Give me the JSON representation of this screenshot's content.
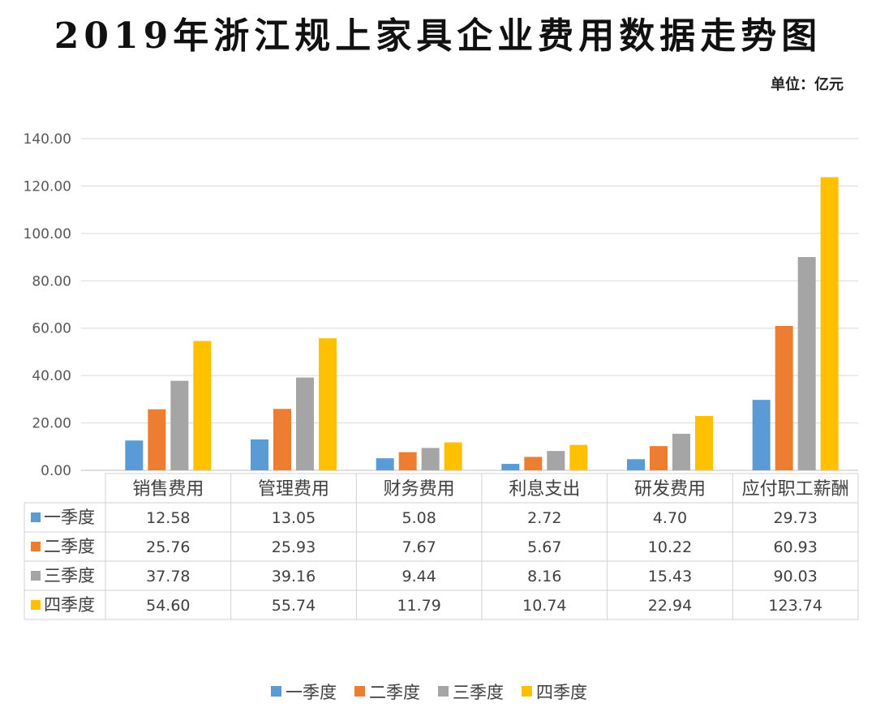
{
  "chart_data": {
    "type": "bar",
    "title": "2019年浙江规上家具企业费用数据走势图",
    "unit": "单位：亿元",
    "categories": [
      "销售费用",
      "管理费用",
      "财务费用",
      "利息支出",
      "研发费用",
      "应付职工薪酬"
    ],
    "series": [
      {
        "name": "一季度",
        "color": "#5b9bd5",
        "values": [
          12.58,
          13.05,
          5.08,
          2.72,
          4.7,
          29.73
        ],
        "labels": [
          "12.58",
          "13.05",
          "5.08",
          "2.72",
          "4.70",
          "29.73"
        ]
      },
      {
        "name": "二季度",
        "color": "#ed7d31",
        "values": [
          25.76,
          25.93,
          7.67,
          5.67,
          10.22,
          60.93
        ],
        "labels": [
          "25.76",
          "25.93",
          "7.67",
          "5.67",
          "10.22",
          "60.93"
        ]
      },
      {
        "name": "三季度",
        "color": "#a5a5a5",
        "values": [
          37.78,
          39.16,
          9.44,
          8.16,
          15.43,
          90.03
        ],
        "labels": [
          "37.78",
          "39.16",
          "9.44",
          "8.16",
          "15.43",
          "90.03"
        ]
      },
      {
        "name": "四季度",
        "color": "#ffc000",
        "values": [
          54.6,
          55.74,
          11.79,
          10.74,
          22.94,
          123.74
        ],
        "labels": [
          "54.60",
          "55.74",
          "11.79",
          "10.74",
          "22.94",
          "123.74"
        ]
      }
    ],
    "ylim": [
      0,
      140
    ],
    "yticks": [
      "0.00",
      "20.00",
      "40.00",
      "60.00",
      "80.00",
      "100.00",
      "120.00",
      "140.00"
    ],
    "grid": true,
    "legend": "bottom",
    "data_table": true
  }
}
